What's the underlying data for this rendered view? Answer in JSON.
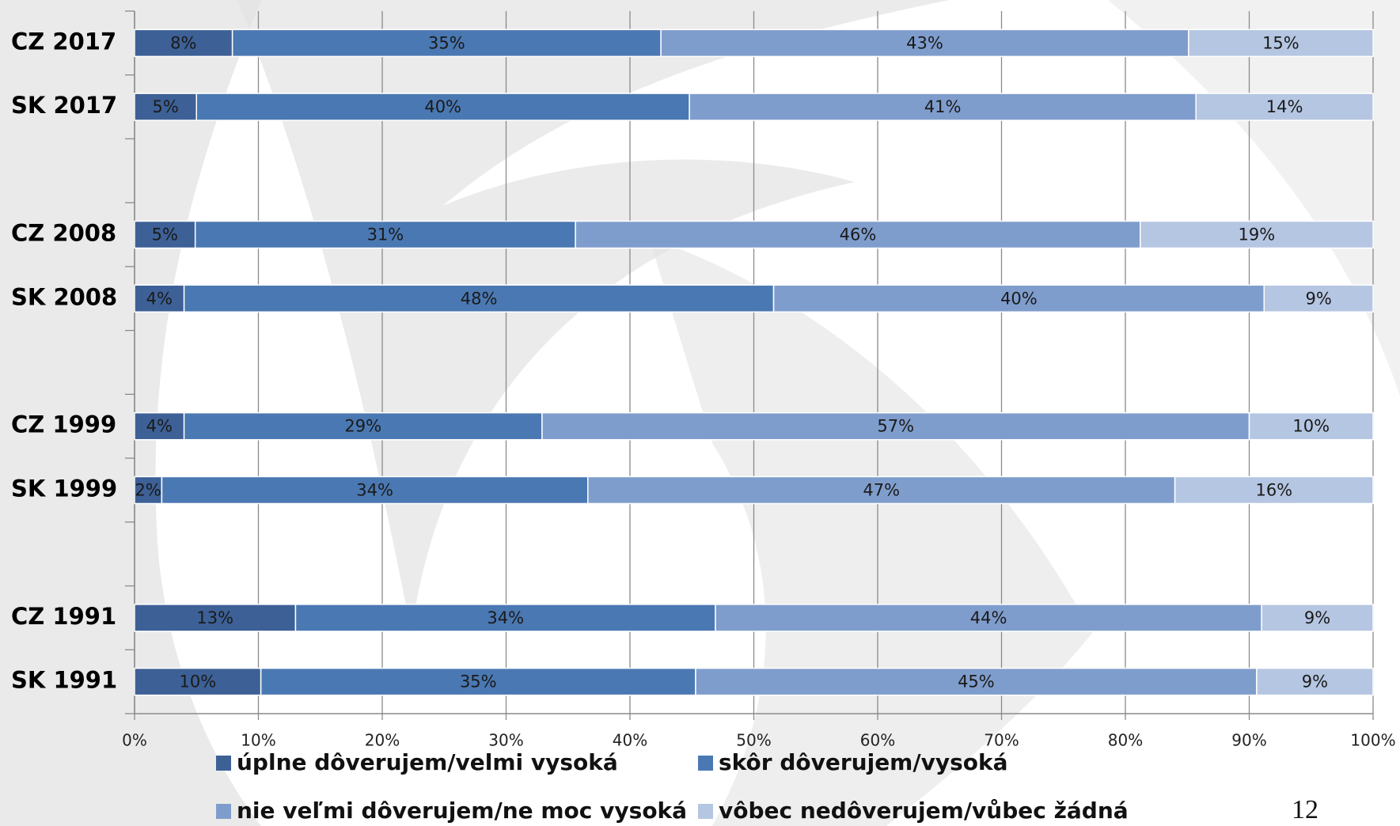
{
  "chart_data": {
    "type": "stacked_bar_horizontal",
    "categories": [
      "CZ 2017",
      "SK 2017",
      null,
      "CZ 2008",
      "SK 2008",
      null,
      "CZ 1999",
      "SK 1999",
      null,
      "CZ 1991",
      "SK 1991"
    ],
    "series": [
      {
        "name": "úplne dôverujem/velmi vysoká",
        "color": "#3d6096",
        "values": [
          7.9,
          5.0,
          null,
          4.9,
          4.0,
          null,
          4.0,
          2.2,
          null,
          13.0,
          10.2
        ],
        "value_labels": [
          "8%",
          "5%",
          null,
          "5%",
          "4%",
          null,
          "4%",
          "2%",
          null,
          "13%",
          "10%"
        ]
      },
      {
        "name": "skôr dôverujem/vysoká",
        "color": "#4a78b2",
        "values": [
          34.6,
          39.8,
          null,
          30.7,
          47.6,
          null,
          28.9,
          34.4,
          null,
          33.9,
          35.1
        ],
        "value_labels": [
          "35%",
          "40%",
          null,
          "31%",
          "48%",
          null,
          "29%",
          "34%",
          null,
          "34%",
          "35%"
        ]
      },
      {
        "name": "nie veľmi dôverujem/ne moc vysoká",
        "color": "#7f9dcc",
        "values": [
          42.6,
          40.9,
          null,
          45.6,
          39.6,
          null,
          57.1,
          47.4,
          null,
          44.1,
          45.3
        ],
        "value_labels": [
          "43%",
          "41%",
          null,
          "46%",
          "40%",
          null,
          "57%",
          "47%",
          null,
          "44%",
          "45%"
        ]
      },
      {
        "name": "vôbec nedôverujem/vůbec žádná",
        "color": "#b5c6e2",
        "values": [
          14.9,
          14.3,
          null,
          18.8,
          8.8,
          null,
          10.0,
          16.0,
          null,
          9.0,
          9.4
        ],
        "value_labels": [
          "15%",
          "14%",
          null,
          "19%",
          "9%",
          null,
          "10%",
          "16%",
          null,
          "9%",
          "9%"
        ]
      }
    ],
    "xlim": [
      0,
      100
    ],
    "xticks": [
      {
        "value": 0,
        "label": "0%"
      },
      {
        "value": 10,
        "label": "10%"
      },
      {
        "value": 20,
        "label": "20%"
      },
      {
        "value": 30,
        "label": "30%"
      },
      {
        "value": 40,
        "label": "40%"
      },
      {
        "value": 50,
        "label": "50%"
      },
      {
        "value": 60,
        "label": "60%"
      },
      {
        "value": 70,
        "label": "70%"
      },
      {
        "value": 80,
        "label": "80%"
      },
      {
        "value": 90,
        "label": "90%"
      },
      {
        "value": 100,
        "label": "100%"
      }
    ],
    "grid": true,
    "legend": "bottom"
  },
  "slide_number": "12"
}
